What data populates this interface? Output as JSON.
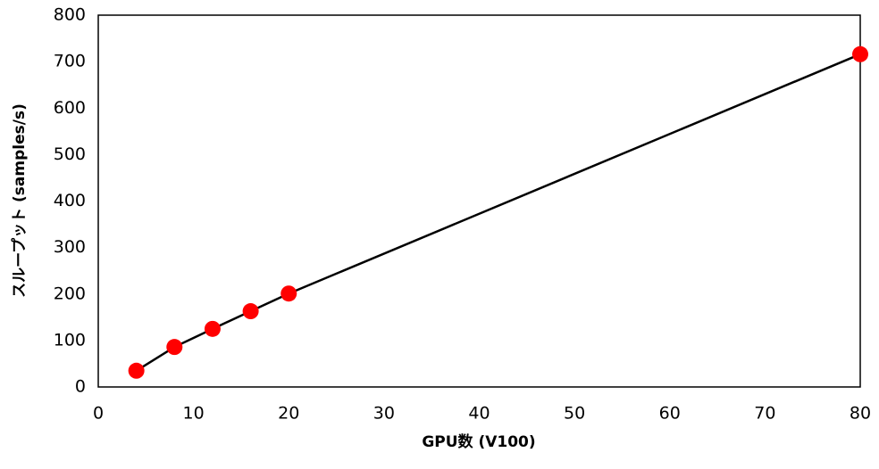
{
  "chart_data": {
    "type": "line",
    "x_label": "GPU数 (V100)",
    "y_label": "スループット (samples/s)",
    "x": [
      4,
      8,
      12,
      16,
      20,
      80
    ],
    "series": [
      {
        "name": null,
        "color": "#ff0000",
        "line_color": "#000000",
        "values": [
          35,
          86,
          125,
          163,
          201,
          716
        ]
      }
    ],
    "xlim": [
      0,
      80
    ],
    "xticks": [
      0,
      10,
      20,
      30,
      40,
      50,
      60,
      70,
      80
    ],
    "ylim": [
      0,
      800
    ],
    "yticks": [
      0,
      100,
      200,
      300,
      400,
      500,
      600,
      700,
      800
    ],
    "grid": false
  }
}
